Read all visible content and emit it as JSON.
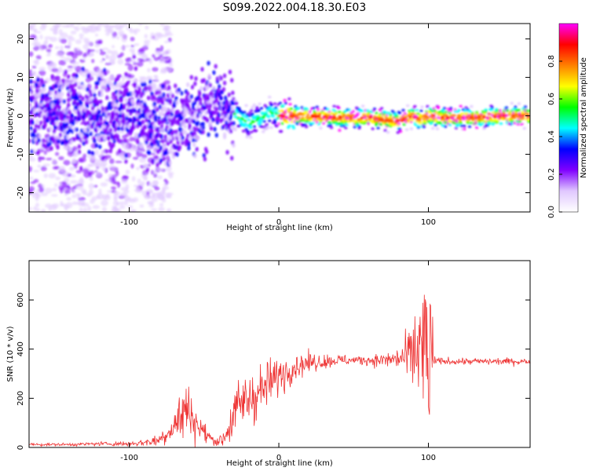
{
  "figure_title": "S099.2022.004.18.30.E03",
  "colors": {
    "snr_line": "#ee3333",
    "axes": "#000000",
    "background": "#ffffff"
  },
  "chart_data": [
    {
      "type": "heatmap",
      "title": "S099.2022.004.18.30.E03",
      "xlabel": "Height of straight line (km)",
      "ylabel": "Frequency (Hz)",
      "xlim": [
        -167,
        168
      ],
      "ylim": [
        -25,
        24
      ],
      "x_ticks": [
        -100,
        0,
        100
      ],
      "x_tick_labels": [
        "-100",
        "0",
        "100"
      ],
      "y_ticks": [
        -20,
        -10,
        0,
        10,
        20
      ],
      "y_tick_labels": [
        "-20",
        "-10",
        "0",
        "10",
        "20"
      ],
      "ridge": {
        "description_points_x": [
          -167,
          -150,
          -130,
          -110,
          -95,
          -85,
          -78,
          -70,
          -60,
          -50,
          -45,
          -40,
          -35,
          -28,
          -20,
          -15,
          -10,
          -5,
          0,
          5,
          20,
          40,
          60,
          70,
          80,
          90,
          95,
          100,
          110,
          130,
          150,
          168
        ],
        "frequency_hz": [
          0,
          1,
          0,
          1,
          0,
          -2,
          -4,
          -2,
          -1,
          1,
          3,
          4,
          2,
          0,
          -2,
          -1,
          0,
          1,
          0,
          0,
          0,
          -0.5,
          -0.5,
          -1,
          -1.5,
          0,
          -1,
          0,
          -0.5,
          -0.5,
          0,
          0
        ]
      },
      "colorbar": {
        "label": "Normalized spectral amplitude",
        "ticks": [
          0.0,
          0.2,
          0.4,
          0.6,
          0.8
        ],
        "tick_labels": [
          "0.0",
          "0.2",
          "0.4",
          "0.6",
          "0.8"
        ],
        "range": [
          0,
          1
        ],
        "colormap": [
          "#ffffff",
          "#e0c8ff",
          "#8000ff",
          "#0000ff",
          "#00ffff",
          "#00ff00",
          "#ffff00",
          "#ff8000",
          "#ff0000",
          "#ff00ff"
        ]
      }
    },
    {
      "type": "line",
      "xlabel": "Height of straight line (km)",
      "ylabel": "SNR (10 * v/v)",
      "xlim": [
        -167,
        168
      ],
      "ylim": [
        0,
        760
      ],
      "x_ticks": [
        -100,
        0,
        100
      ],
      "x_tick_labels": [
        "-100",
        "0",
        "100"
      ],
      "y_ticks": [
        0,
        200,
        400,
        600
      ],
      "y_tick_labels": [
        "0",
        "200",
        "400",
        "600"
      ],
      "series": [
        {
          "x": [
            -167,
            -140,
            -120,
            -100,
            -90,
            -80,
            -75,
            -70,
            -65,
            -62,
            -58,
            -55,
            -50,
            -45,
            -42,
            -38,
            -35,
            -30,
            -25,
            -20,
            -15,
            -10,
            -5,
            0,
            10,
            20,
            30,
            40,
            50,
            60,
            70,
            80,
            85,
            90,
            95,
            100,
            103,
            105,
            110,
            130,
            150,
            168
          ],
          "y": [
            12,
            12,
            15,
            15,
            20,
            30,
            60,
            90,
            130,
            160,
            130,
            95,
            60,
            35,
            25,
            30,
            60,
            130,
            180,
            200,
            220,
            240,
            270,
            290,
            330,
            345,
            350,
            355,
            355,
            355,
            355,
            360,
            365,
            380,
            420,
            300,
            360,
            350,
            350,
            350,
            350,
            350
          ],
          "spread": [
            3,
            3,
            4,
            5,
            8,
            12,
            25,
            40,
            50,
            55,
            45,
            35,
            20,
            12,
            8,
            15,
            30,
            50,
            60,
            60,
            55,
            50,
            45,
            40,
            30,
            20,
            15,
            12,
            10,
            10,
            15,
            25,
            40,
            80,
            140,
            170,
            12,
            8,
            7,
            7,
            7,
            7
          ]
        }
      ]
    }
  ]
}
